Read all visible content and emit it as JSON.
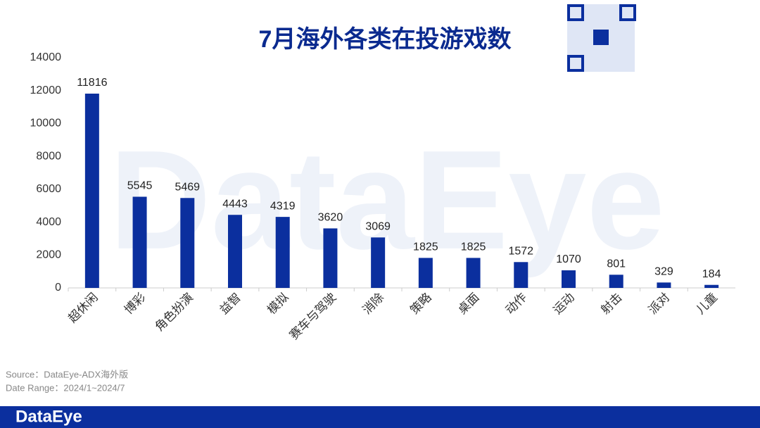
{
  "chart_data": {
    "type": "bar",
    "title": "7月海外各类在投游戏数",
    "categories": [
      "超休闲",
      "博彩",
      "角色扮演",
      "益智",
      "模拟",
      "赛车与驾驶",
      "消除",
      "策略",
      "桌面",
      "动作",
      "运动",
      "射击",
      "派对",
      "儿童"
    ],
    "values": [
      11816,
      5545,
      5469,
      4443,
      4319,
      3620,
      3069,
      1825,
      1825,
      1572,
      1070,
      801,
      329,
      184
    ],
    "color": "#0b2f9e",
    "ylim": [
      0,
      14000
    ],
    "yticks": [
      0,
      2000,
      4000,
      6000,
      8000,
      10000,
      12000,
      14000
    ],
    "grid": false
  },
  "watermark": "DataEye",
  "footer": {
    "source": "Source：DataEye-ADX海外版",
    "date_range": "Date Range：2024/1~2024/7",
    "brand": "DataEye"
  }
}
